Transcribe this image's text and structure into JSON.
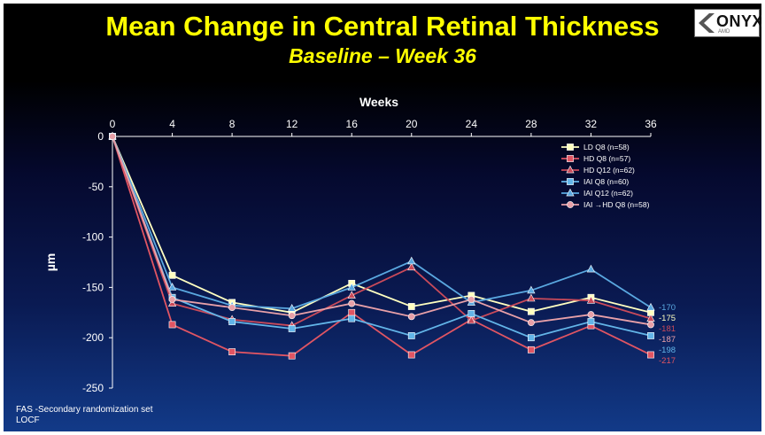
{
  "slide": {
    "title": "Mean Change in Central Retinal Thickness",
    "subtitle": "Baseline – Week 36",
    "logo_text": "ONYX",
    "logo_sub": "AMD",
    "footnotes": [
      "FAS -Secondary randomization set",
      "LOCF"
    ]
  },
  "chart_data": {
    "type": "line",
    "title": "Mean Change in Central Retinal Thickness",
    "xlabel": "Weeks",
    "ylabel": "µm",
    "x": [
      0,
      4,
      8,
      12,
      16,
      20,
      24,
      28,
      32,
      36
    ],
    "x_ticks": [
      "0",
      "4",
      "8",
      "12",
      "16",
      "20",
      "24",
      "28",
      "32",
      "36"
    ],
    "xlim": [
      0,
      36
    ],
    "y_ticks": [
      "0",
      "-50",
      "-100",
      "-150",
      "-200",
      "-250"
    ],
    "y_tick_values": [
      0,
      -50,
      -100,
      -150,
      -200,
      -250
    ],
    "ylim": [
      -250,
      0
    ],
    "grid": false,
    "legend_position": "top-right",
    "series": [
      {
        "name": "LD Q8 (n=58)",
        "color": "#ffffc0",
        "marker": "square",
        "values": [
          0,
          -138,
          -165,
          -175,
          -146,
          -169,
          -158,
          -174,
          -160,
          -175
        ],
        "end_label": "-175"
      },
      {
        "name": "HD Q8 (n=57)",
        "color": "#e05563",
        "marker": "square",
        "values": [
          0,
          -187,
          -214,
          -218,
          -175,
          -217,
          -182,
          -212,
          -188,
          -217
        ],
        "end_label": "-217"
      },
      {
        "name": "HD Q12 (n=62)",
        "color": "#c94a5a",
        "marker": "triangle",
        "values": [
          0,
          -166,
          -182,
          -188,
          -158,
          -130,
          -183,
          -161,
          -163,
          -181
        ],
        "end_label": "-181"
      },
      {
        "name": "IAI Q8 (n=60)",
        "color": "#63b5e8",
        "marker": "square",
        "values": [
          0,
          -160,
          -184,
          -191,
          -181,
          -198,
          -176,
          -200,
          -184,
          -198
        ],
        "end_label": "-198"
      },
      {
        "name": "IAI Q12 (n=62)",
        "color": "#5aa8e0",
        "marker": "triangle",
        "values": [
          0,
          -150,
          -168,
          -171,
          -150,
          -124,
          -165,
          -153,
          -132,
          -170
        ],
        "end_label": "-170"
      },
      {
        "name": "IAI →HD Q8 (n=58)",
        "color": "#e8a0a8",
        "marker": "circle",
        "values": [
          0,
          -162,
          -170,
          -178,
          -166,
          -179,
          -162,
          -185,
          -177,
          -187
        ],
        "end_label": "-187"
      }
    ]
  }
}
